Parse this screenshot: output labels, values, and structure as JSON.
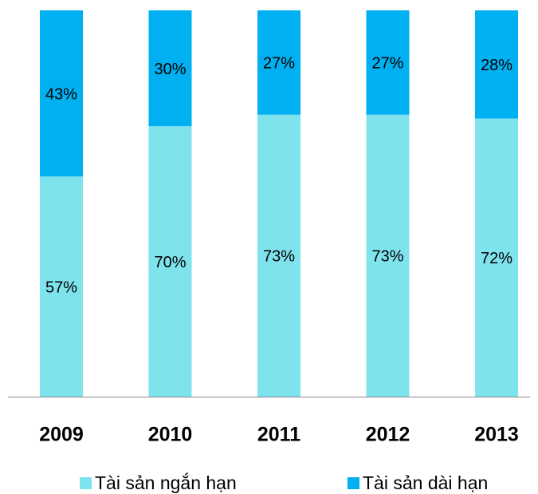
{
  "chart_data": {
    "type": "stacked_bar",
    "categories": [
      "2009",
      "2010",
      "2011",
      "2012",
      "2013"
    ],
    "series": [
      {
        "name": "Tài sản ngắn hạn",
        "color": "#7fe3ee",
        "values": [
          57,
          70,
          73,
          73,
          72
        ],
        "value_labels": [
          "57%",
          "70%",
          "73%",
          "73%",
          "72%"
        ]
      },
      {
        "name": "Tài sản dài hạn",
        "color": "#00b0f0",
        "values": [
          43,
          30,
          27,
          27,
          28
        ],
        "value_labels": [
          "43%",
          "30%",
          "27%",
          "27%",
          "28%"
        ]
      }
    ],
    "ylim": [
      0,
      100
    ],
    "grid": false,
    "legend": "bottom"
  }
}
